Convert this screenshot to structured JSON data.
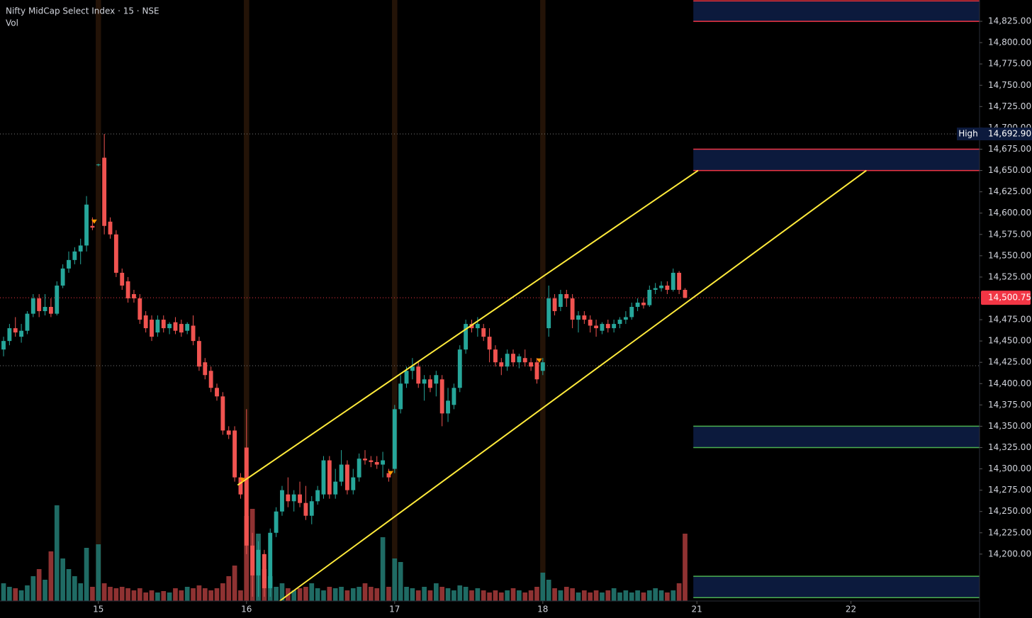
{
  "chart_data": {
    "type": "candlestick",
    "title": "Nifty MidCap Select Index · 15 · NSE",
    "volume_label": "Vol",
    "up_color": "#26a69a",
    "down_color": "#f05350",
    "volume_up_color": "#1f6b64",
    "volume_down_color": "#8f3232",
    "grid": false,
    "open": [
      14440,
      14450,
      14465,
      14455,
      14462,
      14482,
      14500,
      14485,
      14490,
      14482,
      14515,
      14535,
      14545,
      14555,
      14562,
      14585,
      14657,
      14665,
      14590,
      14575,
      14530,
      14520,
      14505,
      14500,
      14480,
      14475,
      14460,
      14475,
      14465,
      14472,
      14470,
      14462,
      14468,
      14450,
      14425,
      14415,
      14395,
      14385,
      14345,
      14345,
      14290,
      14325,
      14210,
      14175,
      14200,
      14160,
      14225,
      14250,
      14270,
      14262,
      14270,
      14260,
      14245,
      14262,
      14270,
      14310,
      14270,
      14285,
      14305,
      14275,
      14290,
      14312,
      14310,
      14308,
      14305,
      14295,
      14300,
      14370,
      14400,
      14415,
      14420,
      14400,
      14405,
      14400,
      14405,
      14365,
      14375,
      14395,
      14440,
      14470,
      14465,
      14465,
      14455,
      14440,
      14425,
      14420,
      14435,
      14425,
      14430,
      14425,
      14425,
      14415,
      14465,
      14500,
      14490,
      14505,
      14500,
      14475,
      14480,
      14475,
      14468,
      14462,
      14470,
      14465,
      14470,
      14475,
      14478,
      14490,
      14495,
      14492,
      14510,
      14512,
      14515,
      14510,
      14530,
      14510
    ],
    "high": [
      14455,
      14470,
      14478,
      14470,
      14485,
      14505,
      14505,
      14505,
      14500,
      14520,
      14540,
      14555,
      14560,
      14570,
      14620,
      14595,
      14658,
      14692.9,
      14595,
      14580,
      14535,
      14525,
      14510,
      14505,
      14485,
      14480,
      14480,
      14480,
      14472,
      14478,
      14475,
      14472,
      14480,
      14455,
      14430,
      14420,
      14400,
      14390,
      14350,
      14350,
      14295,
      14370,
      14225,
      14215,
      14205,
      14230,
      14255,
      14280,
      14290,
      14275,
      14285,
      14280,
      14268,
      14280,
      14315,
      14315,
      14300,
      14322,
      14310,
      14300,
      14318,
      14322,
      14315,
      14315,
      14320,
      14300,
      14375,
      14410,
      14420,
      14430,
      14425,
      14410,
      14410,
      14415,
      14410,
      14395,
      14400,
      14445,
      14475,
      14475,
      14478,
      14470,
      14465,
      14445,
      14430,
      14440,
      14440,
      14435,
      14440,
      14430,
      14430,
      14430,
      14515,
      14505,
      14510,
      14510,
      14505,
      14485,
      14485,
      14480,
      14475,
      14472,
      14475,
      14475,
      14478,
      14485,
      14495,
      14500,
      14500,
      14515,
      14518,
      14520,
      14520,
      14535,
      14532,
      14512
    ],
    "low": [
      14432,
      14445,
      14455,
      14448,
      14458,
      14478,
      14478,
      14480,
      14478,
      14480,
      14512,
      14530,
      14540,
      14540,
      14555,
      14580,
      14655,
      14575,
      14570,
      14525,
      14510,
      14495,
      14495,
      14470,
      14460,
      14450,
      14455,
      14460,
      14458,
      14458,
      14455,
      14458,
      14445,
      14415,
      14405,
      14390,
      14380,
      14340,
      14335,
      14285,
      14265,
      14200,
      14150,
      14150,
      14150,
      14150,
      14220,
      14245,
      14255,
      14250,
      14255,
      14240,
      14235,
      14258,
      14265,
      14265,
      14265,
      14280,
      14270,
      14270,
      14285,
      14305,
      14302,
      14300,
      14290,
      14285,
      14295,
      14365,
      14395,
      14405,
      14395,
      14380,
      14390,
      14385,
      14350,
      14355,
      14370,
      14390,
      14435,
      14460,
      14455,
      14450,
      14425,
      14420,
      14410,
      14415,
      14420,
      14418,
      14420,
      14415,
      14400,
      14410,
      14455,
      14480,
      14485,
      14490,
      14465,
      14460,
      14470,
      14460,
      14455,
      14458,
      14460,
      14460,
      14465,
      14470,
      14475,
      14485,
      14488,
      14490,
      14505,
      14508,
      14505,
      14508,
      14505,
      14500
    ],
    "close": [
      14450,
      14465,
      14460,
      14462,
      14482,
      14500,
      14485,
      14490,
      14482,
      14515,
      14535,
      14545,
      14555,
      14562,
      14610,
      14583,
      14657,
      14585,
      14575,
      14530,
      14515,
      14500,
      14500,
      14475,
      14465,
      14455,
      14475,
      14465,
      14470,
      14462,
      14460,
      14470,
      14450,
      14420,
      14410,
      14395,
      14385,
      14345,
      14340,
      14290,
      14270,
      14210,
      14175,
      14205,
      14160,
      14225,
      14250,
      14275,
      14262,
      14270,
      14260,
      14245,
      14262,
      14275,
      14310,
      14270,
      14285,
      14305,
      14275,
      14290,
      14312,
      14310,
      14308,
      14305,
      14310,
      14290,
      14370,
      14400,
      14415,
      14420,
      14400,
      14405,
      14395,
      14410,
      14365,
      14380,
      14395,
      14440,
      14470,
      14465,
      14470,
      14455,
      14440,
      14425,
      14420,
      14435,
      14425,
      14432,
      14425,
      14420,
      14405,
      14425,
      14500,
      14485,
      14505,
      14500,
      14475,
      14480,
      14475,
      14468,
      14465,
      14470,
      14465,
      14470,
      14475,
      14478,
      14490,
      14495,
      14492,
      14510,
      14512,
      14515,
      14510,
      14530,
      14510,
      14500.75
    ],
    "volume": [
      25,
      20,
      18,
      15,
      22,
      35,
      45,
      30,
      70,
      135,
      60,
      45,
      35,
      25,
      75,
      20,
      80,
      25,
      20,
      18,
      20,
      18,
      15,
      18,
      12,
      15,
      12,
      14,
      12,
      18,
      15,
      20,
      18,
      22,
      18,
      15,
      18,
      25,
      35,
      50,
      15,
      120,
      130,
      95,
      45,
      35,
      20,
      25,
      18,
      15,
      18,
      20,
      25,
      18,
      15,
      20,
      18,
      20,
      15,
      18,
      20,
      25,
      20,
      18,
      90,
      20,
      60,
      55,
      20,
      18,
      15,
      20,
      15,
      25,
      20,
      18,
      15,
      22,
      20,
      15,
      18,
      15,
      12,
      15,
      12,
      15,
      18,
      15,
      12,
      15,
      20,
      40,
      30,
      18,
      15,
      20,
      18,
      12,
      15,
      12,
      15,
      12,
      15,
      18,
      12,
      15,
      12,
      15,
      12,
      15,
      18,
      15,
      12,
      15,
      25,
      95
    ],
    "xlim": [
      -0.6,
      164.7
    ],
    "xticks": [
      {
        "value": 16,
        "label": "15"
      },
      {
        "value": 41,
        "label": "16"
      },
      {
        "value": 66,
        "label": "17"
      },
      {
        "value": 91,
        "label": "18"
      },
      {
        "value": 117,
        "label": "21"
      },
      {
        "value": 143,
        "label": "22"
      }
    ],
    "ylim": [
      14145,
      14850
    ],
    "yticks": [
      {
        "value": 14200,
        "label": "14,200.00"
      },
      {
        "value": 14225,
        "label": "14,225.00"
      },
      {
        "value": 14250,
        "label": "14,250.00"
      },
      {
        "value": 14275,
        "label": "14,275.00"
      },
      {
        "value": 14300,
        "label": "14,300.00"
      },
      {
        "value": 14325,
        "label": "14,325.00"
      },
      {
        "value": 14350,
        "label": "14,350.00"
      },
      {
        "value": 14375,
        "label": "14,375.00"
      },
      {
        "value": 14400,
        "label": "14,400.00"
      },
      {
        "value": 14425,
        "label": "14,425.00"
      },
      {
        "value": 14450,
        "label": "14,450.00"
      },
      {
        "value": 14475,
        "label": "14,475.00"
      },
      {
        "value": 14525,
        "label": "14,525.00"
      },
      {
        "value": 14550,
        "label": "14,550.00"
      },
      {
        "value": 14575,
        "label": "14,575.00"
      },
      {
        "value": 14600,
        "label": "14,600.00"
      },
      {
        "value": 14625,
        "label": "14,625.00"
      },
      {
        "value": 14650,
        "label": "14,650.00"
      },
      {
        "value": 14675,
        "label": "14,675.00"
      },
      {
        "value": 14700,
        "label": "14,700.00"
      },
      {
        "value": 14725,
        "label": "14,725.00"
      },
      {
        "value": 14750,
        "label": "14,750.00"
      },
      {
        "value": 14775,
        "label": "14,775.00"
      },
      {
        "value": 14800,
        "label": "14,800.00"
      },
      {
        "value": 14825,
        "label": "14,825.00"
      }
    ],
    "high_marker": {
      "label": "High",
      "value": 14692.9,
      "value_label": "14,692.90"
    },
    "last_price": {
      "value": 14500.75,
      "value_label": "14,500.75",
      "color": "#f23645"
    },
    "reference_level": 14421,
    "zones": [
      {
        "start": 116.4,
        "from": 14825,
        "to": 14849,
        "color": "#f23645"
      },
      {
        "start": 116.4,
        "from": 14650,
        "to": 14675,
        "color": "#f23645"
      },
      {
        "start": 116.4,
        "from": 14325,
        "to": 14350,
        "color": "#4caf50"
      },
      {
        "start": 116.4,
        "from": 14149,
        "to": 14174,
        "color": "#4caf50"
      }
    ],
    "zone_fill": "#0c1a3d",
    "channel_color": "#ffeb3b",
    "channel": [
      {
        "x": [
          39.5,
          117.2
        ],
        "y": [
          14281,
          14650
        ]
      },
      {
        "x": [
          46.6,
          145.6
        ],
        "y": [
          14145,
          14650
        ]
      }
    ],
    "markers": {
      "x": [
        15.3,
        40.3,
        65.3,
        90.4
      ],
      "y": [
        14590,
        14287,
        14295,
        14427
      ],
      "color": "#ff9800"
    }
  }
}
